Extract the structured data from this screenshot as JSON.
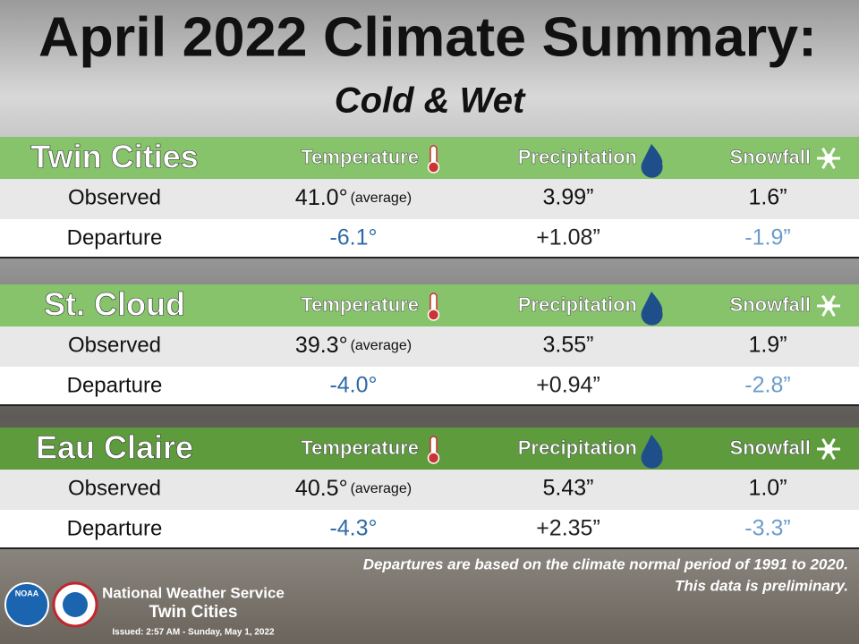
{
  "title": "April 2022 Climate Summary:",
  "subtitle": "Cold & Wet",
  "sections": [
    {
      "name": "Twin Cities",
      "headers": [
        "Temperature",
        "Precipitation",
        "Snowfall"
      ],
      "rows": [
        {
          "label": "Observed",
          "cells": [
            "41.0°",
            "3.99”",
            "1.6”"
          ],
          "note": "(average)"
        },
        {
          "label": "Departure",
          "cells": [
            "-6.1°",
            "+1.08”",
            "-1.9”"
          ]
        }
      ]
    },
    {
      "name": "St. Cloud",
      "headers": [
        "Temperature",
        "Precipitation",
        "Snowfall"
      ],
      "rows": [
        {
          "label": "Observed",
          "cells": [
            "39.3°",
            "3.55”",
            "1.9”"
          ],
          "note": "(average)"
        },
        {
          "label": "Departure",
          "cells": [
            "-4.0°",
            "+0.94”",
            "-2.8”"
          ]
        }
      ]
    },
    {
      "name": "Eau Claire",
      "headers": [
        "Temperature",
        "Precipitation",
        "Snowfall"
      ],
      "rows": [
        {
          "label": "Observed",
          "cells": [
            "40.5°",
            "5.43”",
            "1.0”"
          ],
          "note": "(average)"
        },
        {
          "label": "Departure",
          "cells": [
            "-4.3°",
            "+2.35”",
            "-3.3”"
          ]
        }
      ]
    }
  ],
  "footer": {
    "notes": [
      "Departures are based on the climate normal period of 1991 to 2020.",
      "This data is preliminary."
    ],
    "agency": "National Weather Service",
    "office": "Twin Cities",
    "issued": "Issued: 2:57 AM - Sunday, May 1, 2022",
    "logo": "NOAA"
  }
}
